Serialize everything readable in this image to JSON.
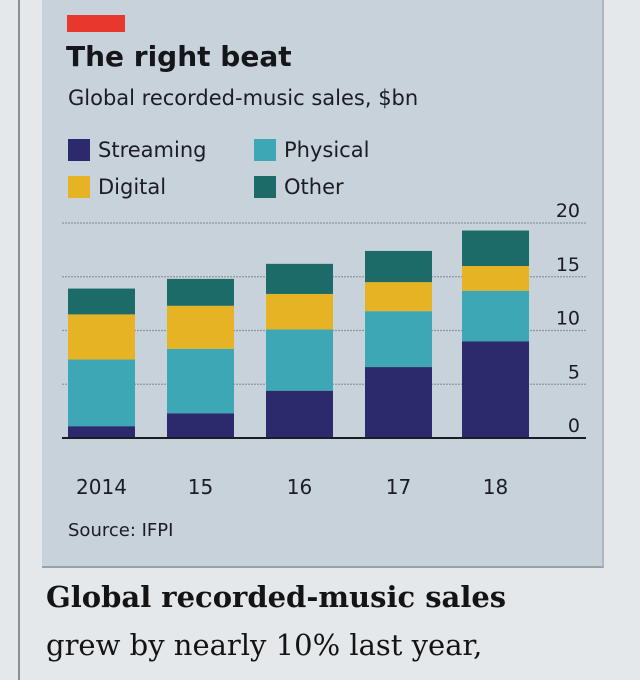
{
  "header": {
    "title": "The right beat",
    "subtitle": "Global recorded-music sales, $bn"
  },
  "source": "Source: IFPI",
  "article": {
    "line1": "Global recorded-music sales",
    "line2": "grew by nearly 10% last year,"
  },
  "colors": {
    "Streaming": "#2c2a6c",
    "Physical": "#3ea7b6",
    "Digital": "#e6b324",
    "Other": "#1d6b68",
    "accent": "#e8372d"
  },
  "chart_data": {
    "type": "bar",
    "stacked": true,
    "title": "The right beat",
    "subtitle": "Global recorded-music sales, $bn",
    "categories": [
      "2014",
      "15",
      "16",
      "17",
      "18"
    ],
    "series": [
      {
        "name": "Streaming",
        "values": [
          1.1,
          2.3,
          4.4,
          6.6,
          9.0
        ]
      },
      {
        "name": "Physical",
        "values": [
          6.2,
          6.0,
          5.7,
          5.2,
          4.7
        ]
      },
      {
        "name": "Digital",
        "values": [
          4.2,
          4.0,
          3.3,
          2.7,
          2.3
        ]
      },
      {
        "name": "Other",
        "values": [
          2.4,
          2.5,
          2.8,
          2.9,
          3.3
        ]
      }
    ],
    "yticks": [
      "0",
      "5",
      "10",
      "15",
      "20"
    ],
    "ylim": [
      0,
      20
    ],
    "yaxis_side": "right",
    "grid": true,
    "legend": "top-left",
    "source": "Source: IFPI"
  }
}
